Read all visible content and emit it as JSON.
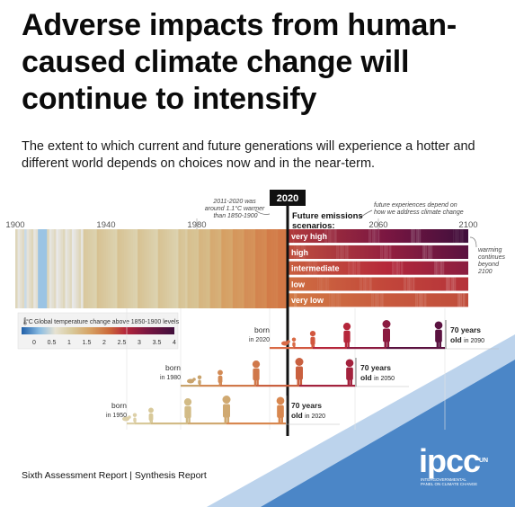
{
  "title": "Adverse impacts from human-caused climate change will continue to intensify",
  "subtitle": "The extent to which current and future generations will experience a hotter and different world depends on choices now and in the near-term.",
  "footer": "Sixth Assessment Report | Synthesis Report",
  "logo": {
    "text": "ipcc",
    "sub": "Intergovernmental panel on climate change",
    "un": "UN"
  },
  "timeline": {
    "years": [
      "1900",
      "1940",
      "1980",
      "2060",
      "2100"
    ],
    "now_label": "2020",
    "annotation_past": "2011-2020 was around 1.1°C warmer than 1850-1900",
    "annotation_future": "future experiences depend on how we address climate change",
    "scenarios_title": "Future emissions scenarios:",
    "scenarios": [
      "very high",
      "high",
      "intermediate",
      "low",
      "very low"
    ],
    "continues_note": "warming continues beyond 2100"
  },
  "legend": {
    "title": "Global temperature change above 1850-1900 levels",
    "unit": "°C",
    "ticks": [
      "0",
      "0.5",
      "1",
      "1.5",
      "2",
      "2.5",
      "3",
      "3.5",
      "4"
    ]
  },
  "generations": [
    {
      "born_label": "born",
      "born_year": "in 2020",
      "age_label": "70 years",
      "old_label": "old",
      "old_year": "in 2090"
    },
    {
      "born_label": "born",
      "born_year": "in 1980",
      "age_label": "70 years",
      "old_label": "old",
      "old_year": "in 2050"
    },
    {
      "born_label": "born",
      "born_year": "in 1950",
      "age_label": "70 years",
      "old_label": "old",
      "old_year": "in 2020"
    }
  ],
  "colors": {
    "cold": "#8cbde3",
    "neutral": "#d8cba8",
    "warm": "#d68a4c",
    "hot": "#b5263a",
    "extreme": "#3f0f3c",
    "accent_blue": "#4a86c8"
  }
}
